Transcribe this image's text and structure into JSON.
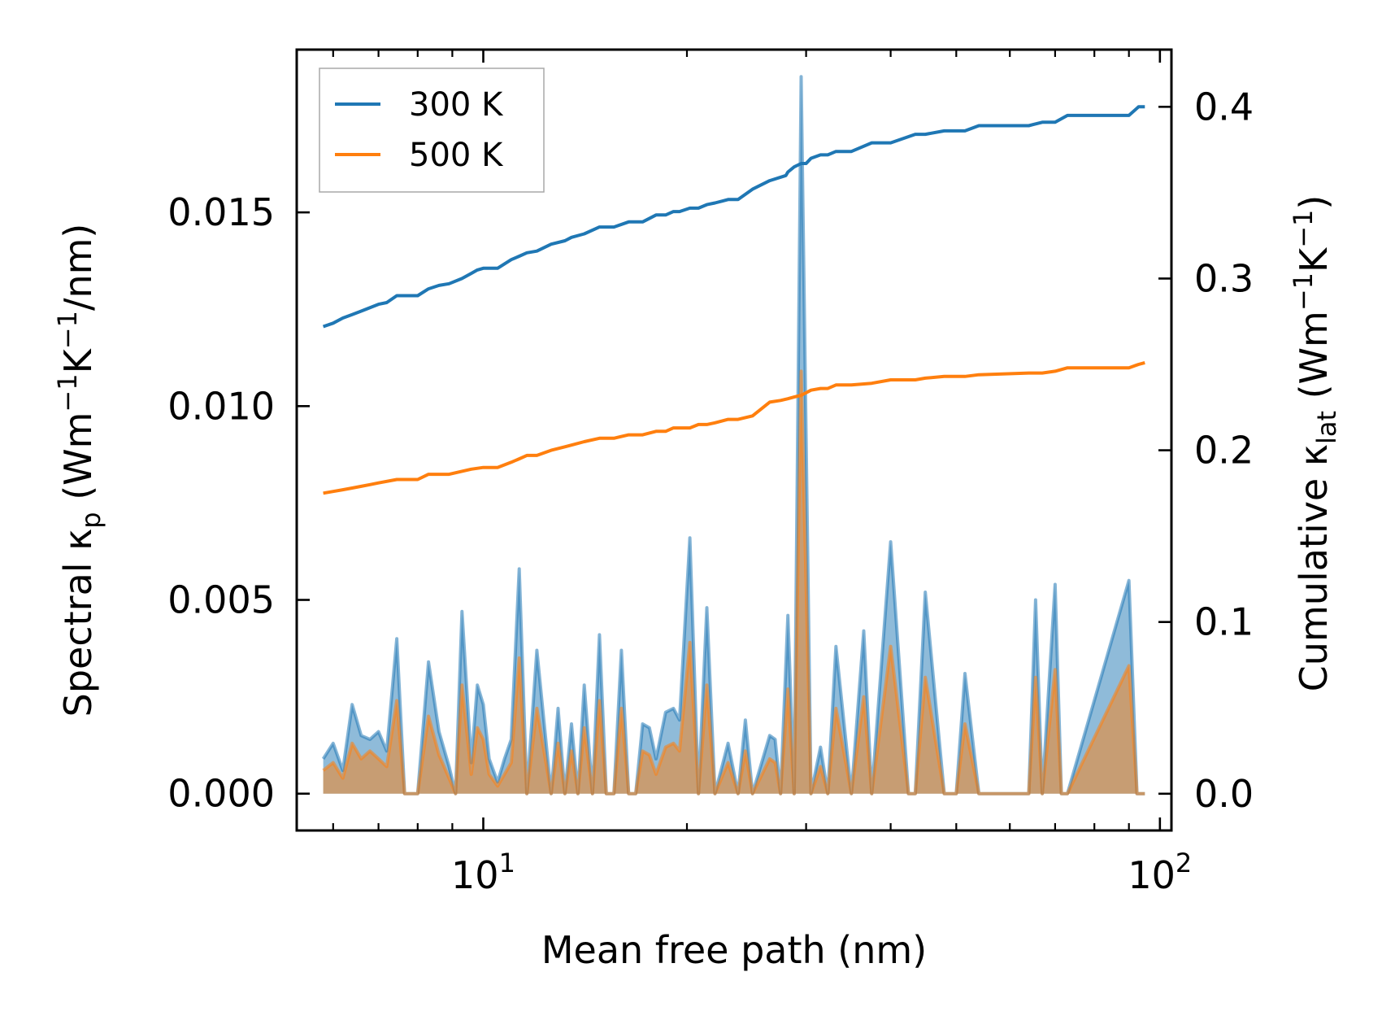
{
  "chart_data": {
    "type": "line",
    "xlabel": "Mean free path (nm)",
    "ylabel_left": {
      "main": "Spectral κ",
      "sub": "p",
      "unit_open": " (Wm",
      "sup1": "−1",
      "mid": "K",
      "sup2": "−1",
      "tail": "/nm)"
    },
    "ylabel_right": {
      "main": "Cumulative κ",
      "sub": "lat",
      "unit_open": " (Wm",
      "sup1": "−1",
      "mid": "K",
      "sup2": "−1",
      "tail": ")"
    },
    "xscale": "log",
    "xlim": [
      5.3,
      104
    ],
    "ylim_left": [
      -0.00095,
      0.0192
    ],
    "ylim_right": [
      -0.0214,
      0.4333
    ],
    "x_ticks": [
      {
        "base": "10",
        "exp": "1",
        "value": 10
      },
      {
        "base": "10",
        "exp": "2",
        "value": 100
      }
    ],
    "y_ticks_left": [
      {
        "value": 0.0,
        "label": "0.000"
      },
      {
        "value": 0.005,
        "label": "0.005"
      },
      {
        "value": 0.01,
        "label": "0.010"
      },
      {
        "value": 0.015,
        "label": "0.015"
      }
    ],
    "y_ticks_right": [
      {
        "value": 0.0,
        "label": "0.0"
      },
      {
        "value": 0.1,
        "label": "0.1"
      },
      {
        "value": 0.2,
        "label": "0.2"
      },
      {
        "value": 0.3,
        "label": "0.3"
      },
      {
        "value": 0.4,
        "label": "0.4"
      }
    ],
    "legend": {
      "position": "top-left",
      "entries": [
        {
          "label": "300 K",
          "color": "#1f77b4"
        },
        {
          "label": "500 K",
          "color": "#ff7f0e"
        }
      ]
    },
    "spectral_x": [
      5.8,
      6.0,
      6.2,
      6.4,
      6.6,
      6.8,
      7.0,
      7.2,
      7.45,
      7.65,
      8.0,
      8.3,
      8.6,
      8.9,
      9.1,
      9.3,
      9.6,
      9.8,
      10.0,
      10.2,
      10.5,
      10.75,
      11.0,
      11.3,
      11.6,
      12.0,
      12.6,
      12.9,
      13.2,
      13.5,
      13.8,
      14.1,
      14.5,
      14.85,
      15.2,
      15.6,
      16.0,
      16.4,
      16.8,
      17.2,
      17.6,
      18.0,
      18.6,
      19.1,
      19.5,
      20.2,
      20.8,
      21.4,
      22.0,
      23.0,
      23.8,
      24.4,
      25.0,
      26.5,
      27.0,
      27.5,
      28.2,
      28.8,
      29.5,
      30.5,
      31.5,
      32.3,
      33.2,
      35.0,
      36.5,
      37.5,
      40.0,
      42.5,
      43.5,
      45.0,
      48.0,
      50.0,
      51.5,
      54.0,
      64.0,
      65.5,
      67.0,
      70.0,
      71.5,
      73.0,
      90.0,
      92.5,
      95.0
    ],
    "series": [
      {
        "name": "300 K",
        "color": "#1f77b4",
        "spectral": [
          0.0009,
          0.0013,
          0.0006,
          0.0023,
          0.0015,
          0.0014,
          0.0016,
          0.0011,
          0.004,
          0.0,
          0.0,
          0.0034,
          0.0016,
          0.0007,
          0.0,
          0.0047,
          0.0008,
          0.0028,
          0.0023,
          0.0009,
          0.0003,
          0.0009,
          0.0014,
          0.0058,
          0.0,
          0.0037,
          0.0,
          0.0022,
          0.0,
          0.0018,
          0.0,
          0.0028,
          0.0,
          0.0041,
          0.0,
          0.0,
          0.0037,
          0.0,
          0.0,
          0.0018,
          0.0017,
          0.0009,
          0.0021,
          0.0022,
          0.0019,
          0.0066,
          0.0,
          0.0048,
          0.0,
          0.0013,
          0.0,
          0.0019,
          0.0,
          0.0015,
          0.0014,
          0.0,
          0.0046,
          0.0,
          0.0185,
          0.0,
          0.0012,
          0.0,
          0.0038,
          0.0,
          0.0042,
          0.0,
          0.0065,
          0.0,
          0.0,
          0.0052,
          0.0,
          0.0,
          0.0031,
          0.0,
          0.0,
          0.005,
          0.0,
          0.0054,
          0.0,
          0.0,
          0.0055,
          0.0,
          0.0
        ],
        "cumulative_x": [
          5.8,
          6.0,
          6.2,
          6.4,
          6.6,
          6.8,
          7.0,
          7.2,
          7.45,
          8.0,
          8.3,
          8.6,
          8.9,
          9.3,
          9.6,
          9.8,
          10.0,
          10.5,
          11.0,
          11.3,
          11.6,
          12.0,
          12.6,
          13.2,
          13.5,
          14.1,
          14.85,
          15.6,
          16.4,
          17.2,
          18.0,
          18.6,
          19.1,
          19.5,
          20.2,
          20.8,
          21.4,
          22.0,
          23.0,
          23.8,
          25.0,
          26.5,
          28.0,
          28.2,
          28.8,
          29.5,
          30.0,
          30.5,
          31.5,
          32.3,
          33.2,
          35.0,
          37.5,
          40.0,
          43.5,
          45.0,
          48.0,
          51.5,
          54.0,
          64.0,
          67.0,
          70.0,
          73.0,
          90.0,
          93.0,
          95.0
        ],
        "cumulative": [
          0.272,
          0.274,
          0.277,
          0.279,
          0.281,
          0.283,
          0.285,
          0.286,
          0.29,
          0.29,
          0.294,
          0.296,
          0.297,
          0.3,
          0.303,
          0.305,
          0.306,
          0.306,
          0.311,
          0.313,
          0.315,
          0.316,
          0.32,
          0.322,
          0.324,
          0.326,
          0.33,
          0.33,
          0.333,
          0.333,
          0.337,
          0.337,
          0.339,
          0.339,
          0.341,
          0.341,
          0.343,
          0.344,
          0.346,
          0.346,
          0.352,
          0.357,
          0.36,
          0.362,
          0.365,
          0.367,
          0.367,
          0.37,
          0.372,
          0.372,
          0.374,
          0.374,
          0.379,
          0.379,
          0.384,
          0.384,
          0.386,
          0.386,
          0.389,
          0.389,
          0.391,
          0.391,
          0.395,
          0.395,
          0.4,
          0.4
        ]
      },
      {
        "name": "500 K",
        "color": "#ff7f0e",
        "spectral": [
          0.0006,
          0.0008,
          0.0004,
          0.0013,
          0.0009,
          0.0011,
          0.0009,
          0.0007,
          0.0024,
          0.0,
          0.0,
          0.002,
          0.001,
          0.0004,
          0.0,
          0.0028,
          0.0005,
          0.0017,
          0.0014,
          0.0005,
          0.0002,
          0.0005,
          0.0008,
          0.0035,
          0.0,
          0.0022,
          0.0,
          0.0013,
          0.0,
          0.0011,
          0.0,
          0.0017,
          0.0,
          0.0024,
          0.0,
          0.0,
          0.0022,
          0.0,
          0.0,
          0.0011,
          0.001,
          0.0005,
          0.0012,
          0.0013,
          0.0011,
          0.0039,
          0.0,
          0.0028,
          0.0,
          0.0008,
          0.0,
          0.0011,
          0.0,
          0.0009,
          0.0008,
          0.0,
          0.0027,
          0.0,
          0.0109,
          0.0,
          0.0007,
          0.0,
          0.0022,
          0.0,
          0.0025,
          0.0,
          0.0038,
          0.0,
          0.0,
          0.003,
          0.0,
          0.0,
          0.0018,
          0.0,
          0.0,
          0.003,
          0.0,
          0.0032,
          0.0,
          0.0,
          0.0033,
          0.0,
          0.0
        ],
        "cumulative_x": [
          5.8,
          6.0,
          6.2,
          6.4,
          6.6,
          6.8,
          7.0,
          7.45,
          8.0,
          8.3,
          8.9,
          9.6,
          10.0,
          10.5,
          11.0,
          11.3,
          11.6,
          12.0,
          12.6,
          13.2,
          13.5,
          14.1,
          14.85,
          15.6,
          16.4,
          17.2,
          18.0,
          18.6,
          19.1,
          20.2,
          20.8,
          21.4,
          22.0,
          23.0,
          23.8,
          25.0,
          26.5,
          27.5,
          28.2,
          28.8,
          29.5,
          30.5,
          31.5,
          32.3,
          33.2,
          35.0,
          37.5,
          40.0,
          43.5,
          45.0,
          48.0,
          51.5,
          54.0,
          64.0,
          67.0,
          70.0,
          73.0,
          90.0,
          93.0,
          95.0
        ],
        "cumulative": [
          0.175,
          0.176,
          0.177,
          0.178,
          0.179,
          0.18,
          0.181,
          0.183,
          0.183,
          0.186,
          0.186,
          0.189,
          0.19,
          0.19,
          0.193,
          0.195,
          0.197,
          0.197,
          0.2,
          0.202,
          0.203,
          0.205,
          0.207,
          0.207,
          0.209,
          0.209,
          0.211,
          0.211,
          0.213,
          0.213,
          0.215,
          0.215,
          0.216,
          0.218,
          0.218,
          0.22,
          0.228,
          0.229,
          0.23,
          0.231,
          0.232,
          0.235,
          0.236,
          0.236,
          0.238,
          0.238,
          0.239,
          0.241,
          0.241,
          0.242,
          0.243,
          0.243,
          0.244,
          0.245,
          0.245,
          0.246,
          0.248,
          0.248,
          0.25,
          0.251
        ]
      }
    ]
  }
}
